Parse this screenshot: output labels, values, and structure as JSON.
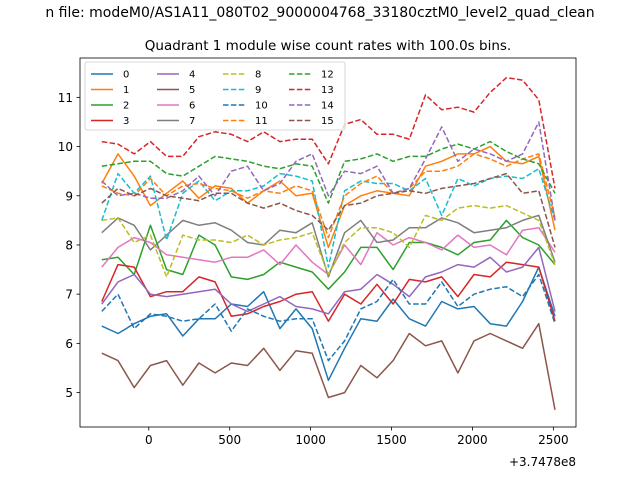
{
  "chart_data": {
    "type": "line",
    "suptitle": "n file: modeM0/AS1A11_080T02_9000004768_33180cztM0_level2_quad_clean",
    "title": "Quadrant 1 module wise count rates with 100.0s bins.",
    "xlabel": "",
    "ylabel": "",
    "x_offset_label": "+3.7478e8",
    "x_ticks": [
      0,
      500,
      1000,
      1500,
      2000,
      2500
    ],
    "y_ticks": [
      5,
      6,
      7,
      8,
      9,
      10,
      11
    ],
    "xlim": [
      -425,
      2640
    ],
    "ylim": [
      4.3,
      11.8
    ],
    "grid": false,
    "legend_position": "upper-left",
    "x": [
      -290,
      -190,
      -90,
      10,
      110,
      210,
      310,
      410,
      510,
      610,
      710,
      810,
      910,
      1010,
      1110,
      1210,
      1310,
      1410,
      1510,
      1610,
      1710,
      1810,
      1910,
      2010,
      2110,
      2210,
      2310,
      2410,
      2510
    ],
    "series": [
      {
        "name": "0",
        "color": "#1f77b4",
        "dash": "solid",
        "values": [
          6.35,
          6.2,
          6.4,
          6.55,
          6.6,
          6.15,
          6.5,
          6.5,
          6.8,
          6.75,
          7.05,
          6.3,
          6.7,
          6.3,
          5.25,
          5.9,
          6.5,
          6.45,
          6.9,
          6.5,
          6.35,
          6.85,
          6.7,
          6.75,
          6.4,
          6.35,
          6.85,
          7.55,
          6.55
        ]
      },
      {
        "name": "1",
        "color": "#ff7f0e",
        "dash": "solid",
        "values": [
          9.25,
          9.85,
          9.4,
          8.8,
          9.05,
          9.3,
          8.95,
          9.2,
          9.15,
          8.85,
          9.1,
          9.3,
          9.0,
          9.05,
          7.95,
          8.8,
          9.0,
          9.1,
          9.05,
          9.0,
          9.6,
          9.7,
          9.85,
          9.85,
          10.0,
          9.7,
          9.65,
          9.8,
          8.3
        ]
      },
      {
        "name": "2",
        "color": "#2ca02c",
        "dash": "solid",
        "values": [
          7.7,
          7.75,
          7.4,
          8.4,
          7.5,
          7.4,
          8.2,
          8.0,
          7.35,
          7.3,
          7.4,
          7.65,
          7.55,
          7.45,
          7.1,
          7.45,
          7.95,
          7.95,
          7.5,
          8.05,
          8.05,
          7.95,
          7.8,
          8.05,
          8.1,
          8.5,
          8.15,
          8.0,
          7.6
        ]
      },
      {
        "name": "3",
        "color": "#d62728",
        "dash": "solid",
        "values": [
          6.85,
          7.6,
          7.55,
          6.95,
          7.05,
          7.05,
          7.35,
          7.25,
          6.55,
          6.6,
          6.75,
          6.85,
          7.0,
          7.05,
          6.45,
          7.0,
          6.8,
          7.2,
          6.8,
          7.3,
          7.25,
          7.35,
          6.95,
          7.4,
          7.35,
          7.65,
          7.6,
          7.55,
          6.45
        ]
      },
      {
        "name": "4",
        "color": "#9467bd",
        "dash": "solid",
        "values": [
          6.8,
          7.25,
          7.4,
          7.0,
          6.95,
          7.0,
          7.05,
          7.1,
          6.8,
          6.65,
          6.8,
          6.95,
          6.75,
          6.7,
          6.6,
          7.05,
          7.1,
          7.4,
          7.2,
          6.95,
          7.35,
          7.45,
          7.6,
          7.55,
          7.75,
          7.45,
          7.55,
          7.95,
          6.65
        ]
      },
      {
        "name": "5",
        "color": "#8c564b",
        "dash": "solid",
        "values": [
          5.8,
          5.65,
          5.1,
          5.55,
          5.65,
          5.15,
          5.6,
          5.4,
          5.6,
          5.55,
          5.9,
          5.45,
          5.85,
          5.8,
          4.9,
          5.0,
          5.55,
          5.3,
          5.65,
          6.2,
          5.95,
          6.05,
          5.4,
          6.05,
          6.2,
          6.05,
          5.9,
          6.4,
          4.65
        ]
      },
      {
        "name": "6",
        "color": "#e377c2",
        "dash": "solid",
        "values": [
          7.55,
          7.95,
          8.15,
          8.05,
          7.8,
          7.75,
          7.7,
          7.65,
          7.75,
          7.75,
          7.9,
          7.6,
          8.0,
          7.65,
          7.4,
          8.0,
          7.6,
          8.25,
          8.0,
          8.15,
          8.05,
          7.9,
          8.2,
          7.95,
          8.0,
          7.8,
          8.3,
          8.35,
          7.85
        ]
      },
      {
        "name": "7",
        "color": "#7f7f7f",
        "dash": "solid",
        "values": [
          8.25,
          8.55,
          8.4,
          7.9,
          8.2,
          8.5,
          8.4,
          8.45,
          8.3,
          8.05,
          8.0,
          8.3,
          8.25,
          8.45,
          7.35,
          8.25,
          8.5,
          8.05,
          8.1,
          8.35,
          8.35,
          8.55,
          8.45,
          8.25,
          8.3,
          8.35,
          8.5,
          8.6,
          7.65
        ]
      },
      {
        "name": "8",
        "color": "#bcbd22",
        "dash": "dashed",
        "values": [
          8.5,
          8.55,
          8.05,
          8.2,
          7.35,
          8.2,
          8.1,
          8.1,
          8.05,
          8.2,
          8.0,
          8.1,
          8.15,
          8.25,
          7.4,
          8.05,
          8.35,
          8.35,
          8.25,
          7.95,
          8.6,
          8.5,
          8.75,
          8.8,
          8.75,
          8.8,
          8.65,
          8.5,
          7.6
        ]
      },
      {
        "name": "9",
        "color": "#17becf",
        "dash": "dashed",
        "values": [
          8.5,
          9.45,
          9.05,
          9.4,
          8.1,
          9.05,
          9.3,
          8.9,
          9.1,
          9.1,
          9.2,
          9.45,
          9.4,
          9.3,
          7.55,
          9.1,
          9.3,
          9.25,
          9.25,
          9.1,
          9.35,
          8.6,
          9.35,
          9.2,
          9.35,
          9.4,
          9.35,
          9.55,
          8.5
        ]
      },
      {
        "name": "10",
        "color": "#1f77b4",
        "dash": "dashed",
        "values": [
          6.65,
          7.0,
          6.3,
          6.6,
          6.55,
          6.45,
          6.5,
          6.8,
          6.25,
          6.7,
          6.55,
          6.45,
          6.5,
          6.5,
          5.65,
          6.05,
          6.7,
          6.85,
          7.3,
          6.8,
          6.8,
          7.25,
          6.75,
          7.0,
          7.1,
          7.15,
          6.95,
          7.4,
          6.4
        ]
      },
      {
        "name": "11",
        "color": "#ff7f0e",
        "dash": "dashed",
        "values": [
          9.2,
          9.05,
          9.0,
          9.35,
          9.0,
          9.2,
          9.25,
          9.15,
          9.1,
          8.95,
          9.1,
          9.05,
          9.2,
          9.1,
          8.15,
          9.0,
          9.25,
          9.4,
          9.05,
          9.15,
          9.5,
          9.5,
          9.6,
          9.85,
          9.75,
          9.6,
          9.75,
          9.85,
          8.55
        ]
      },
      {
        "name": "12",
        "color": "#2ca02c",
        "dash": "dashed",
        "values": [
          9.6,
          9.65,
          9.7,
          9.7,
          9.45,
          9.4,
          9.6,
          9.8,
          9.75,
          9.7,
          9.6,
          9.55,
          9.65,
          9.6,
          8.85,
          9.7,
          9.75,
          9.85,
          9.7,
          9.8,
          9.8,
          9.95,
          10.05,
          9.95,
          10.1,
          9.9,
          9.75,
          9.65,
          9.05
        ]
      },
      {
        "name": "13",
        "color": "#d62728",
        "dash": "dashed",
        "values": [
          10.1,
          10.05,
          9.85,
          10.1,
          9.8,
          9.8,
          10.2,
          10.3,
          10.25,
          10.1,
          10.3,
          10.1,
          10.15,
          10.15,
          9.65,
          10.45,
          10.55,
          10.25,
          10.25,
          10.15,
          11.05,
          10.75,
          10.8,
          10.7,
          11.1,
          11.4,
          11.35,
          10.95,
          9.15
        ]
      },
      {
        "name": "14",
        "color": "#9467bd",
        "dash": "dashed",
        "values": [
          9.3,
          9.0,
          9.05,
          8.95,
          8.95,
          9.1,
          9.4,
          9.0,
          9.5,
          9.6,
          9.1,
          9.25,
          9.7,
          9.85,
          9.0,
          9.5,
          9.45,
          9.6,
          9.05,
          9.15,
          9.75,
          10.4,
          9.7,
          9.95,
          9.85,
          9.7,
          9.85,
          10.5,
          8.5
        ]
      },
      {
        "name": "15",
        "color": "#8c564b",
        "dash": "dashed",
        "values": [
          8.85,
          9.15,
          9.0,
          9.15,
          9.0,
          8.95,
          8.9,
          9.05,
          9.05,
          8.85,
          8.75,
          8.85,
          8.7,
          8.6,
          8.3,
          8.8,
          8.85,
          9.0,
          9.05,
          9.1,
          9.05,
          9.15,
          9.2,
          9.25,
          9.35,
          9.45,
          9.05,
          9.1,
          7.95
        ]
      }
    ]
  }
}
